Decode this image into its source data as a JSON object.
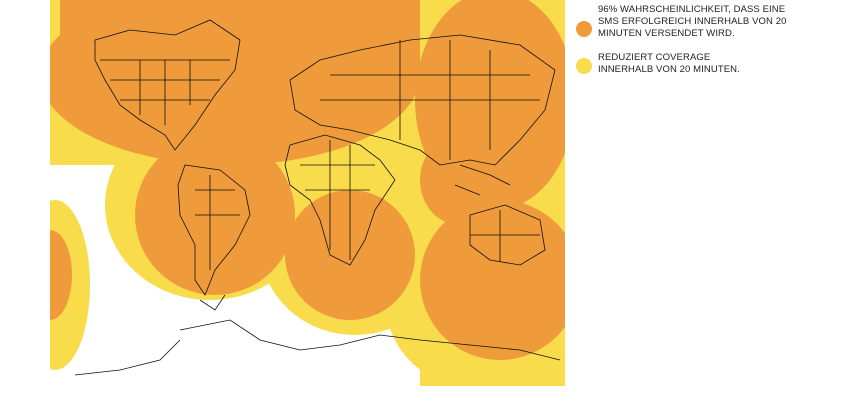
{
  "legend": {
    "items": [
      {
        "label": "96% WAHRSCHEINLICHKEIT, DASS EINE SMS ERFOLGREICH INNERHALB VON 20 MINUTEN VERSENDET WIRD.",
        "color": "#ef9b3b"
      },
      {
        "label": "REDUZIERT COVERAGE INNERHALB VON 20 MINUTEN.",
        "color": "#f8dc4b"
      }
    ]
  }
}
